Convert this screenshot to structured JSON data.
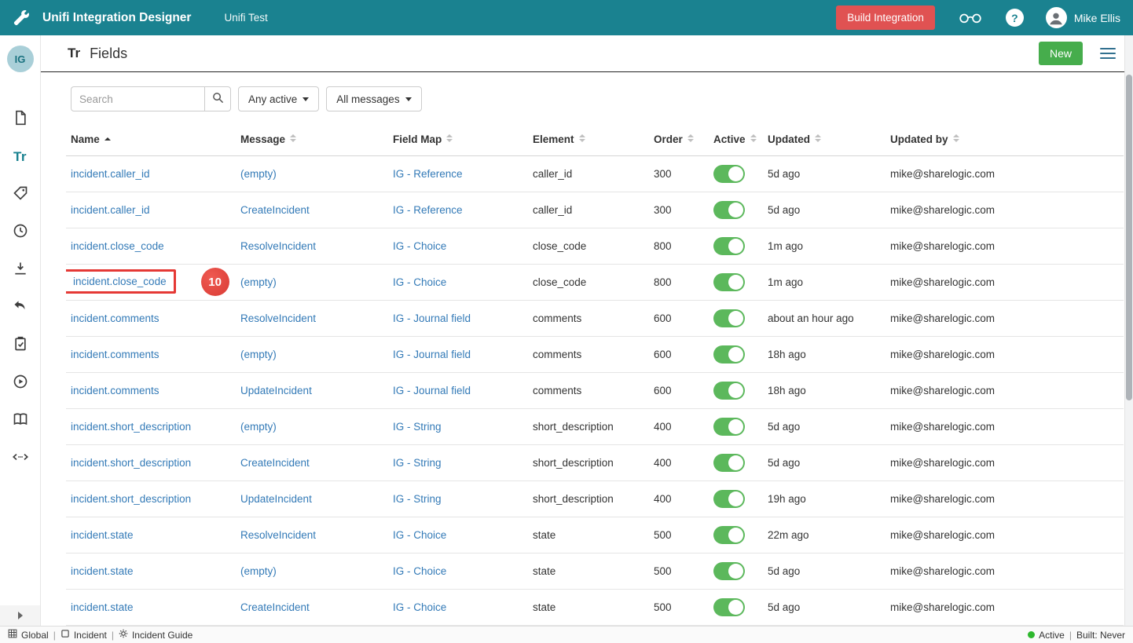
{
  "navbar": {
    "title": "Unifi Integration Designer",
    "subtitle": "Unifi Test",
    "build_button": "Build Integration",
    "user_name": "Mike Ellis",
    "bg_color": "#1a8290",
    "build_button_color": "#e05252"
  },
  "sidebar": {
    "avatar_label": "IG",
    "fields_item_label": "Tr"
  },
  "page_header": {
    "icon_label": "Tr",
    "title": "Fields",
    "new_button": "New",
    "new_button_color": "#46ad4c"
  },
  "toolbar": {
    "search_placeholder": "Search",
    "active_filter": "Any active",
    "messages_filter": "All messages"
  },
  "table": {
    "columns": [
      {
        "key": "name",
        "label": "Name",
        "sort": "asc"
      },
      {
        "key": "message",
        "label": "Message",
        "sort": "none"
      },
      {
        "key": "field_map",
        "label": "Field Map",
        "sort": "none"
      },
      {
        "key": "element",
        "label": "Element",
        "sort": "none"
      },
      {
        "key": "order",
        "label": "Order",
        "sort": "none"
      },
      {
        "key": "active",
        "label": "Active",
        "sort": "none"
      },
      {
        "key": "updated",
        "label": "Updated",
        "sort": "none"
      },
      {
        "key": "updated_by",
        "label": "Updated by",
        "sort": "none"
      }
    ],
    "rows": [
      {
        "name": "incident.caller_id",
        "message": "(empty)",
        "field_map": "IG - Reference",
        "element": "caller_id",
        "order": "300",
        "active": true,
        "updated": "5d ago",
        "updated_by": "mike@sharelogic.com"
      },
      {
        "name": "incident.caller_id",
        "message": "CreateIncident",
        "field_map": "IG - Reference",
        "element": "caller_id",
        "order": "300",
        "active": true,
        "updated": "5d ago",
        "updated_by": "mike@sharelogic.com"
      },
      {
        "name": "incident.close_code",
        "message": "ResolveIncident",
        "field_map": "IG - Choice",
        "element": "close_code",
        "order": "800",
        "active": true,
        "updated": "1m ago",
        "updated_by": "mike@sharelogic.com"
      },
      {
        "name": "incident.close_code",
        "message": "(empty)",
        "field_map": "IG - Choice",
        "element": "close_code",
        "order": "800",
        "active": true,
        "updated": "1m ago",
        "updated_by": "mike@sharelogic.com",
        "highlighted": true
      },
      {
        "name": "incident.comments",
        "message": "ResolveIncident",
        "field_map": "IG - Journal field",
        "element": "comments",
        "order": "600",
        "active": true,
        "updated": "about an hour ago",
        "updated_by": "mike@sharelogic.com"
      },
      {
        "name": "incident.comments",
        "message": "(empty)",
        "field_map": "IG - Journal field",
        "element": "comments",
        "order": "600",
        "active": true,
        "updated": "18h ago",
        "updated_by": "mike@sharelogic.com"
      },
      {
        "name": "incident.comments",
        "message": "UpdateIncident",
        "field_map": "IG - Journal field",
        "element": "comments",
        "order": "600",
        "active": true,
        "updated": "18h ago",
        "updated_by": "mike@sharelogic.com"
      },
      {
        "name": "incident.short_description",
        "message": "(empty)",
        "field_map": "IG - String",
        "element": "short_description",
        "order": "400",
        "active": true,
        "updated": "5d ago",
        "updated_by": "mike@sharelogic.com"
      },
      {
        "name": "incident.short_description",
        "message": "CreateIncident",
        "field_map": "IG - String",
        "element": "short_description",
        "order": "400",
        "active": true,
        "updated": "5d ago",
        "updated_by": "mike@sharelogic.com"
      },
      {
        "name": "incident.short_description",
        "message": "UpdateIncident",
        "field_map": "IG - String",
        "element": "short_description",
        "order": "400",
        "active": true,
        "updated": "19h ago",
        "updated_by": "mike@sharelogic.com"
      },
      {
        "name": "incident.state",
        "message": "ResolveIncident",
        "field_map": "IG - Choice",
        "element": "state",
        "order": "500",
        "active": true,
        "updated": "22m ago",
        "updated_by": "mike@sharelogic.com"
      },
      {
        "name": "incident.state",
        "message": "(empty)",
        "field_map": "IG - Choice",
        "element": "state",
        "order": "500",
        "active": true,
        "updated": "5d ago",
        "updated_by": "mike@sharelogic.com"
      },
      {
        "name": "incident.state",
        "message": "CreateIncident",
        "field_map": "IG - Choice",
        "element": "state",
        "order": "500",
        "active": true,
        "updated": "5d ago",
        "updated_by": "mike@sharelogic.com"
      }
    ]
  },
  "annotation": {
    "badge": "10",
    "highlight_color": "#e53935"
  },
  "statusbar": {
    "items": [
      {
        "icon": "grid-icon",
        "label": "Global"
      },
      {
        "icon": "app-icon",
        "label": "Incident"
      },
      {
        "icon": "gear-icon",
        "label": "Incident Guide"
      }
    ],
    "status": "Active",
    "status_color": "#2eb82e",
    "built": "Built: Never"
  },
  "link_color": "#337ab7"
}
